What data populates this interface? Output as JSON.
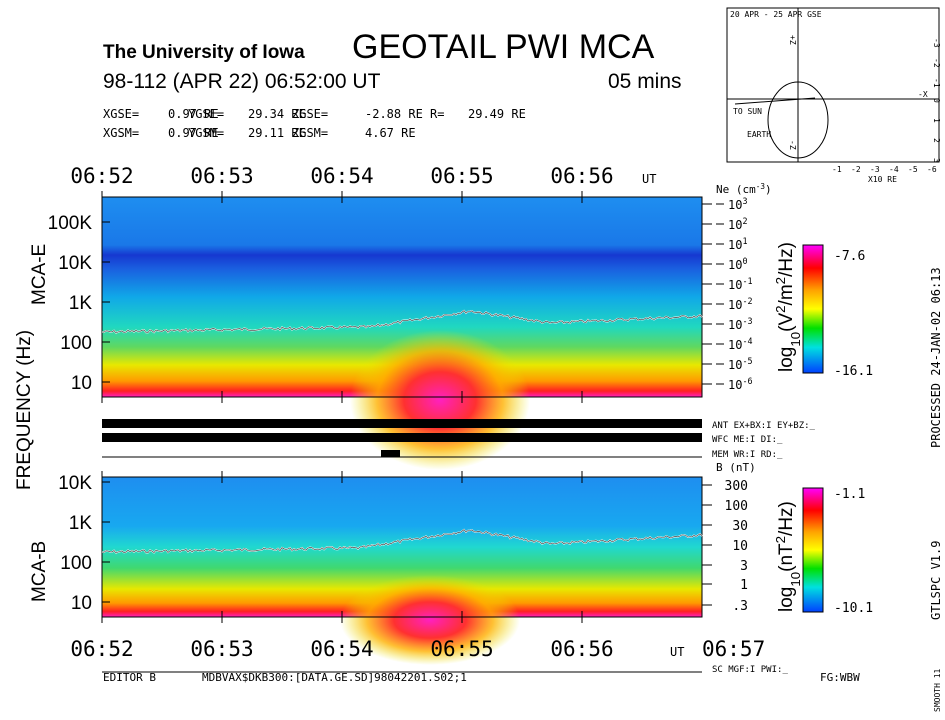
{
  "header": {
    "institution": "The University of Iowa",
    "title": "GEOTAIL PWI MCA",
    "date_line": "98-112 (APR 22) 06:52:00 UT",
    "duration": "05 mins"
  },
  "position": {
    "gse": [
      {
        "label": "XGSE=",
        "value": "0.97 RE"
      },
      {
        "label": "YGSE=",
        "value": "29.34 RE"
      },
      {
        "label": "ZGSE=",
        "value": "-2.88 RE"
      },
      {
        "label": "R=",
        "value": "29.49 RE"
      }
    ],
    "gsm": [
      {
        "label": "XGSM=",
        "value": "0.97 RE"
      },
      {
        "label": "YGSM=",
        "value": "29.11 RE"
      },
      {
        "label": "ZGSM=",
        "value": "4.67 RE"
      }
    ]
  },
  "orbit": {
    "title": "20 APR - 25 APR  GSE",
    "sun": "TO SUN",
    "earth": "EARTH",
    "scale": "X10 RE",
    "x_axis": "-X",
    "z_top": "+Z",
    "z_bottom": "-Z",
    "x_ticks": [
      "-1",
      "-2",
      "-3",
      "-4",
      "-5",
      "-6"
    ],
    "y_ticks": [
      "-3",
      "-2",
      "-1",
      "0",
      "1",
      "2",
      "3"
    ]
  },
  "time_axis": {
    "ticks": [
      "06:52",
      "06:53",
      "06:54",
      "06:55",
      "06:56"
    ],
    "last": "06:57",
    "unit": "UT"
  },
  "mca_e": {
    "label": "MCA-E",
    "freq_ticks": [
      "100K",
      "10K",
      "1K",
      "100",
      "10"
    ],
    "ne_label": {
      "text": "Ne (cm",
      "exp": "-3",
      "close": ")"
    },
    "ne_ticks": [
      {
        "base": "10",
        "exp": "3"
      },
      {
        "base": "10",
        "exp": "2"
      },
      {
        "base": "10",
        "exp": "1"
      },
      {
        "base": "10",
        "exp": "0"
      },
      {
        "base": "10",
        "exp": "-1"
      },
      {
        "base": "10",
        "exp": "-2"
      },
      {
        "base": "10",
        "exp": "-3"
      },
      {
        "base": "10",
        "exp": "-4"
      },
      {
        "base": "10",
        "exp": "-5"
      },
      {
        "base": "10",
        "exp": "-6"
      }
    ],
    "colorbar": {
      "unit": "log",
      "sub": "10",
      "text": "(V",
      "e1": "2",
      "mid": "/m",
      "e2": "2",
      "end": "/Hz)",
      "max": "-7.6",
      "min": "-16.1"
    }
  },
  "frequency_label": "FREQUENCY (Hz)",
  "mode_lines": {
    "ant": "ANT EX+BX:I EY+BZ:_",
    "wfc": "WFC ME:I    DI:_",
    "mem": "MEM WR:I    RD:_"
  },
  "mca_b": {
    "label": "MCA-B",
    "freq_ticks": [
      "10K",
      "1K",
      "100",
      "10"
    ],
    "b_label": "B (nT)",
    "b_ticks": [
      "300",
      "100",
      "30",
      "10",
      "3",
      "1",
      ".3"
    ],
    "colorbar": {
      "unit": "log",
      "sub": "10",
      "text": "(nT",
      "e1": "2",
      "end": "/Hz)",
      "max": "-1.1",
      "min": "-10.1"
    }
  },
  "side": {
    "processed": "PROCESSED 24-JAN-02  06:13",
    "version": "GTLSPC  V1.9",
    "smooth": "SMOOTH 11"
  },
  "footer": {
    "sc": "SC MGF:I   PWI:_",
    "editor": "EDITOR B",
    "file": "MDBVAX$DKB300:[DATA.GE.SD]98042201.S02;1",
    "fg": "FG:WBW"
  }
}
